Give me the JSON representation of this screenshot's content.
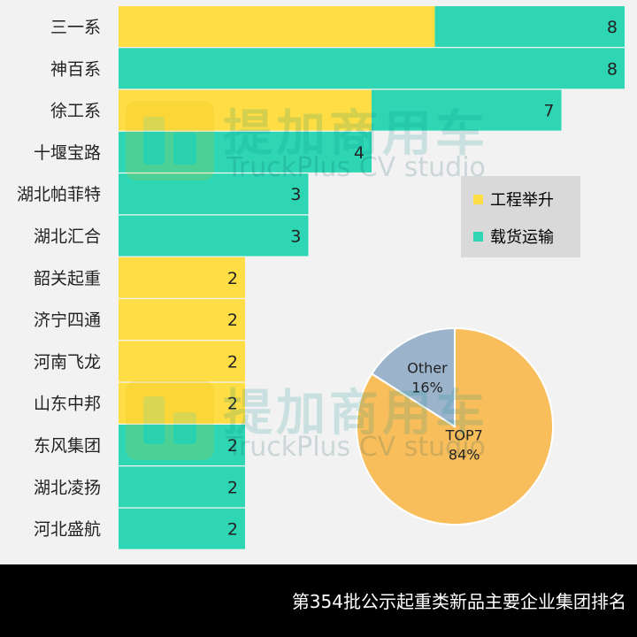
{
  "chart_data": [
    {
      "type": "bar",
      "orientation": "horizontal",
      "stacked": true,
      "categories": [
        "三一系",
        "神百系",
        "徐工系",
        "十堰宝路",
        "湖北帕菲特",
        "湖北汇合",
        "韶关起重",
        "济宁四通",
        "河南飞龙",
        "山东中邦",
        "东风集团",
        "湖北凌扬",
        "河北盛航"
      ],
      "series": [
        {
          "name": "工程举升",
          "color": "#ffdd44",
          "values": [
            5,
            0,
            4,
            0,
            0,
            0,
            2,
            2,
            2,
            2,
            0,
            0,
            0
          ]
        },
        {
          "name": "载货运输",
          "color": "#2ed6b4",
          "values": [
            3,
            8,
            3,
            4,
            3,
            3,
            0,
            0,
            0,
            0,
            2,
            2,
            2
          ]
        }
      ],
      "totals": [
        "8",
        "8",
        "7",
        "4",
        "3",
        "3",
        "2",
        "2",
        "2",
        "2",
        "2",
        "2",
        "2"
      ],
      "xlim": [
        0,
        8
      ],
      "legend": {
        "position": "right-middle"
      },
      "grid": false
    },
    {
      "type": "pie",
      "slices": [
        {
          "label": "TOP7",
          "value": 84,
          "display": "84%",
          "color": "#f9be5c"
        },
        {
          "label": "Other",
          "value": 16,
          "display": "16%",
          "color": "#9cb3cc"
        }
      ]
    }
  ],
  "watermark": {
    "cn": "提加商用车",
    "en": "TruckPlus CV studio"
  },
  "footer": {
    "title": "第354批公示起重类新品主要企业集团排名"
  },
  "legend_labels": {
    "a": "工程举升",
    "b": "载货运输"
  }
}
